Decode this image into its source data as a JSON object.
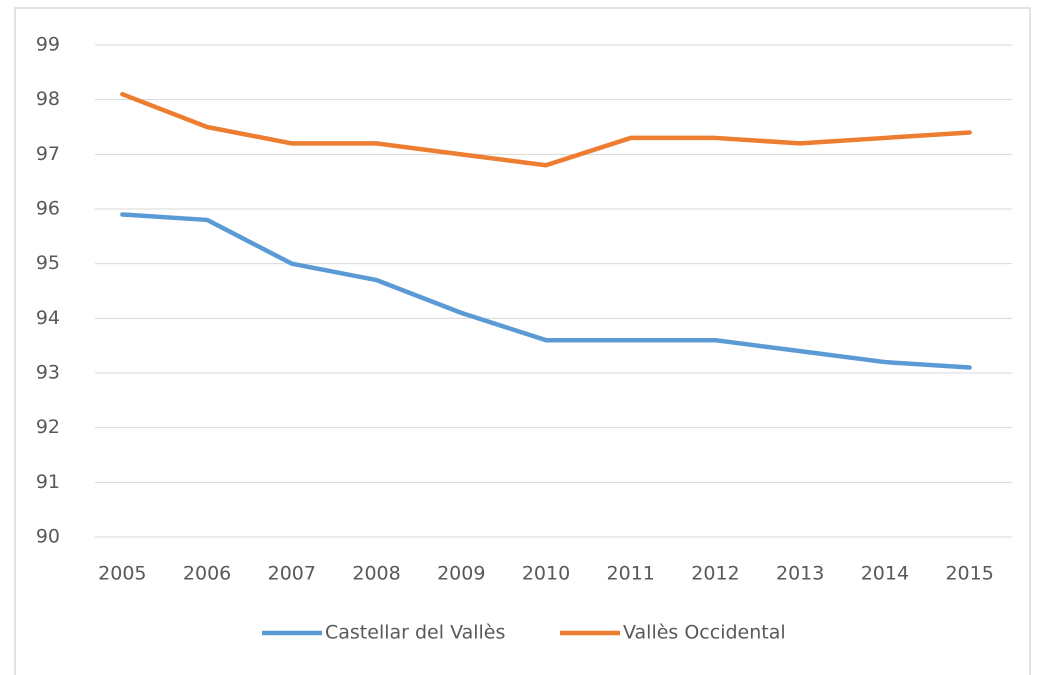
{
  "chart_data": {
    "type": "line",
    "categories": [
      "2005",
      "2006",
      "2007",
      "2008",
      "2009",
      "2010",
      "2011",
      "2012",
      "2013",
      "2014",
      "2015"
    ],
    "series": [
      {
        "name": "Castellar del Vallès",
        "color": "#5b9bd5",
        "values": [
          95.9,
          95.8,
          95.0,
          94.7,
          94.1,
          93.6,
          93.6,
          93.6,
          93.4,
          93.2,
          93.1
        ]
      },
      {
        "name": "Vallès Occidental",
        "color": "#ed7d31",
        "values": [
          98.1,
          97.5,
          97.2,
          97.2,
          97.0,
          96.8,
          97.3,
          97.3,
          97.2,
          97.3,
          97.4
        ]
      }
    ],
    "ylim": [
      90,
      99
    ],
    "yticks": [
      90,
      91,
      92,
      93,
      94,
      95,
      96,
      97,
      98,
      99
    ],
    "grid": true,
    "legend": "bottom"
  }
}
